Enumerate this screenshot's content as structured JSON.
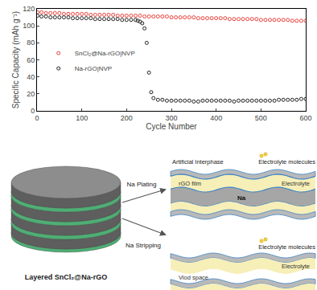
{
  "chart_data": {
    "type": "scatter",
    "x_label": "Cycle Number",
    "y_label": "Specific Capacity (mAh g⁻¹)",
    "xlim": [
      0,
      600
    ],
    "xticks": [
      0,
      100,
      200,
      300,
      400,
      500,
      600
    ],
    "ylim": [
      0,
      120
    ],
    "yticks": [
      0,
      20,
      40,
      60,
      80,
      100,
      120
    ],
    "grid": false,
    "legend": "upper left",
    "series": [
      {
        "name": "SnCl₂@Na-rGO|NVP",
        "color": "#e8413c",
        "marker": "circle-open",
        "x": [
          1,
          10,
          20,
          30,
          40,
          50,
          60,
          70,
          80,
          90,
          100,
          110,
          120,
          130,
          140,
          150,
          160,
          170,
          180,
          190,
          200,
          210,
          220,
          230,
          240,
          250,
          260,
          270,
          280,
          290,
          300,
          310,
          320,
          330,
          340,
          350,
          360,
          370,
          380,
          390,
          400,
          410,
          420,
          430,
          440,
          450,
          460,
          470,
          480,
          490,
          500,
          510,
          520,
          530,
          540,
          550,
          560,
          570,
          580,
          590,
          600
        ],
        "values": [
          116,
          116,
          115,
          115,
          115,
          115,
          114,
          114,
          114,
          114,
          114,
          114,
          113,
          113,
          113,
          113,
          113,
          113,
          112,
          112,
          112,
          112,
          112,
          112,
          111,
          111,
          111,
          111,
          111,
          111,
          110,
          110,
          110,
          110,
          110,
          110,
          109,
          109,
          109,
          109,
          109,
          109,
          109,
          108,
          108,
          108,
          108,
          108,
          108,
          108,
          107,
          107,
          107,
          107,
          107,
          107,
          107,
          106,
          106,
          106,
          106
        ]
      },
      {
        "name": "Na-rGO|NVP",
        "color": "#222222",
        "marker": "circle-open",
        "x": [
          1,
          10,
          20,
          30,
          40,
          50,
          60,
          70,
          80,
          90,
          100,
          110,
          120,
          130,
          140,
          150,
          160,
          170,
          180,
          190,
          200,
          210,
          220,
          225,
          230,
          235,
          240,
          245,
          250,
          255,
          260,
          270,
          280,
          290,
          300,
          310,
          320,
          330,
          340,
          350,
          360,
          370,
          380,
          390,
          400,
          410,
          420,
          430,
          440,
          450,
          460,
          470,
          480,
          490,
          500,
          510,
          520,
          530,
          540,
          550,
          560,
          570,
          580,
          590,
          600
        ],
        "values": [
          112,
          111,
          111,
          110,
          110,
          110,
          110,
          110,
          109,
          109,
          109,
          109,
          109,
          108,
          108,
          108,
          108,
          108,
          108,
          107,
          107,
          107,
          107,
          106,
          105,
          103,
          97,
          80,
          45,
          22,
          15,
          13,
          13,
          12,
          12,
          12,
          12,
          12,
          12,
          11,
          11,
          12,
          12,
          12,
          12,
          12,
          12,
          12,
          11,
          12,
          12,
          12,
          12,
          12,
          12,
          12,
          12,
          12,
          13,
          13,
          13,
          13,
          13,
          14,
          14
        ]
      }
    ]
  },
  "diagram": {
    "stack_label": "Layered SnCl₂@Na-rGO",
    "arrow_plating": "Na Plating",
    "arrow_stripping": "Na Stripping",
    "plating_panel": {
      "interphase": "Artificial Interphase",
      "molecules": "Electrolyte molecules",
      "film": "rGO film",
      "electrolyte": "Electrolyte",
      "metal": "Na"
    },
    "stripping_panel": {
      "molecules": "Electrolyte molecules",
      "electrolyte": "Electrolyte",
      "void": "Viod space"
    }
  }
}
